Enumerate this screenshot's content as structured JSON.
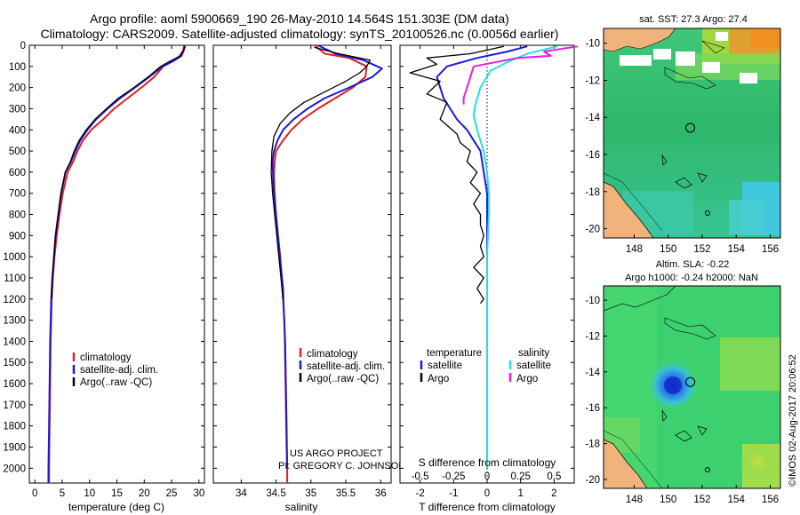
{
  "header": {
    "title_line1": "Argo profile: aoml 5900669_190 26-May-2010 14.564S 151.303E (DM data)",
    "title_line2": "Climatology: CARS2009. Satellite-adjusted climatology: synTS_20100526.nc (0.0056d earlier)"
  },
  "credits": {
    "project": "US ARGO PROJECT",
    "pi": "PI: GREGORY C. JOHNSON",
    "imos": "©IMOS 02-Aug-2017 20:06:52"
  },
  "colors": {
    "climatology": "#e02020",
    "satellite": "#1a1ad8",
    "argo": "#000000",
    "sal_satellite": "#20e0e0",
    "sal_argo": "#e020e0",
    "land": "#f2b27c"
  },
  "chart_data": [
    {
      "id": "temperature",
      "type": "line",
      "xlabel": "temperature (deg C)",
      "ylabel": "",
      "xlim": [
        -1,
        31
      ],
      "ylim": [
        2070,
        0
      ],
      "xticks": [
        "0",
        "5",
        "10",
        "15",
        "20",
        "25",
        "30"
      ],
      "xtick_values": [
        0,
        5,
        10,
        15,
        20,
        25,
        30
      ],
      "yticks": [
        "0",
        "100",
        "200",
        "300",
        "400",
        "500",
        "600",
        "700",
        "800",
        "900",
        "1000",
        "1100",
        "1200",
        "1300",
        "1400",
        "1500",
        "1600",
        "1700",
        "1800",
        "1900",
        "2000"
      ],
      "ytick_values": [
        0,
        100,
        200,
        300,
        400,
        500,
        600,
        700,
        800,
        900,
        1000,
        1100,
        1200,
        1300,
        1400,
        1500,
        1600,
        1700,
        1800,
        1900,
        2000
      ],
      "legend": [
        "climatology",
        "satellite-adj. clim.",
        "Argo(..raw -QC)"
      ],
      "series": [
        {
          "name": "climatology",
          "color": "#e02020",
          "width": 2,
          "x": [
            27.3,
            27.1,
            26.5,
            25.2,
            23.5,
            21.8,
            19.5,
            17,
            14.5,
            12.5,
            10.3,
            8.8,
            7.8,
            7,
            6,
            5.1,
            4.5,
            4,
            3.6,
            3.3,
            3.1,
            2.9,
            2.8,
            2.7,
            2.6,
            2.6
          ],
          "y": [
            0,
            25,
            50,
            75,
            100,
            150,
            200,
            250,
            300,
            350,
            400,
            450,
            500,
            550,
            600,
            700,
            800,
            900,
            1000,
            1100,
            1200,
            1400,
            1600,
            1800,
            2000,
            2070
          ]
        },
        {
          "name": "satellite-adj. clim.",
          "color": "#1a1ad8",
          "width": 2,
          "x": [
            27.4,
            27.2,
            26.8,
            25.3,
            23.3,
            20.9,
            18.3,
            15.6,
            13.3,
            11.2,
            9.6,
            8.3,
            7.4,
            6.6,
            5.6,
            4.8,
            4.3,
            3.8,
            3.5,
            3.2,
            3,
            2.8,
            2.7,
            2.6,
            2.5,
            2.5
          ],
          "y": [
            0,
            25,
            50,
            75,
            100,
            150,
            200,
            250,
            300,
            350,
            400,
            450,
            500,
            550,
            600,
            700,
            800,
            900,
            1000,
            1100,
            1200,
            1400,
            1600,
            1800,
            2000,
            2070
          ]
        },
        {
          "name": "Argo(..raw -QC)",
          "color": "#000000",
          "width": 1.3,
          "x": [
            27.5,
            27.2,
            26.6,
            24.7,
            23,
            20.7,
            18.1,
            15.3,
            13.1,
            11,
            9.4,
            8.1,
            7.2,
            6.5,
            5.6,
            4.8,
            4.3,
            3.8,
            3.5,
            3.2,
            3.1
          ],
          "y": [
            5,
            25,
            50,
            75,
            100,
            150,
            200,
            250,
            300,
            350,
            400,
            450,
            500,
            550,
            600,
            700,
            800,
            900,
            1000,
            1100,
            1200
          ]
        }
      ]
    },
    {
      "id": "salinity",
      "type": "line",
      "xlabel": "salinity",
      "xlim": [
        33.6,
        36.15
      ],
      "ylim": [
        2070,
        0
      ],
      "xticks": [
        "34",
        "34.5",
        "35",
        "35.5",
        "36"
      ],
      "xtick_values": [
        34,
        34.5,
        35,
        35.5,
        36
      ],
      "legend": [
        "climatology",
        "satellite-adj. clim.",
        "Argo(..raw -QC)"
      ],
      "series": [
        {
          "name": "climatology",
          "color": "#e02020",
          "width": 2,
          "x": [
            35.05,
            35.2,
            35.55,
            35.8,
            35.78,
            35.6,
            35.35,
            35.1,
            34.88,
            34.72,
            34.6,
            34.5,
            34.48,
            34.47,
            34.48,
            34.5,
            34.53,
            34.56,
            34.58,
            34.6,
            34.62,
            34.63,
            34.64,
            34.65,
            34.66,
            34.66
          ],
          "y": [
            0,
            40,
            60,
            100,
            150,
            200,
            250,
            300,
            350,
            400,
            450,
            500,
            550,
            600,
            700,
            800,
            900,
            1000,
            1100,
            1200,
            1300,
            1500,
            1700,
            1900,
            2000,
            2070
          ]
        },
        {
          "name": "satellite-adj. clim.",
          "color": "#1a1ad8",
          "width": 2,
          "x": [
            35.1,
            35.35,
            35.75,
            36.02,
            35.88,
            35.55,
            35.2,
            34.95,
            34.75,
            34.6,
            34.52,
            34.47,
            34.45,
            34.46,
            34.48,
            34.51,
            34.54,
            34.57,
            34.6,
            34.61,
            34.63,
            34.64,
            34.65,
            34.66
          ],
          "y": [
            0,
            40,
            70,
            110,
            150,
            200,
            250,
            300,
            350,
            400,
            450,
            500,
            550,
            650,
            750,
            850,
            950,
            1050,
            1150,
            1250,
            1400,
            1600,
            1800,
            2000
          ]
        },
        {
          "name": "Argo(..raw -QC)",
          "color": "#000000",
          "width": 1.3,
          "x": [
            35.05,
            35.4,
            35.85,
            35.8,
            35.7,
            35.5,
            35.2,
            34.9,
            34.7,
            34.56,
            34.47,
            34.44,
            34.43,
            34.45,
            34.48,
            34.51,
            34.54,
            34.57,
            34.6
          ],
          "y": [
            10,
            40,
            70,
            100,
            130,
            170,
            220,
            270,
            320,
            370,
            430,
            500,
            600,
            700,
            800,
            900,
            1000,
            1100,
            1200
          ]
        }
      ]
    },
    {
      "id": "difference",
      "type": "line",
      "xlabel": "T difference from climatology",
      "xlabel_top": "S difference from climatology",
      "xlim": [
        -2.6,
        2.6
      ],
      "ylim": [
        2070,
        0
      ],
      "xticks_T": [
        "-2",
        "-1",
        "0",
        "1",
        "2"
      ],
      "xtick_values_T": [
        -2,
        -1,
        0,
        1,
        2
      ],
      "xticks_S": [
        "-0.5",
        "-0.25",
        "0",
        "0.25",
        "0.5"
      ],
      "xtick_values_S": [
        -0.5,
        -0.25,
        0,
        0.25,
        0.5
      ],
      "legend_left_title": "temperature",
      "legend_right_title": "salinity",
      "legend_left": [
        "satellite",
        "Argo"
      ],
      "legend_right": [
        "satellite",
        "Argo"
      ],
      "series": [
        {
          "name": "T satellite",
          "color": "#1a1ad8",
          "width": 2,
          "x": [
            1.2,
            0.6,
            -0.3,
            -1.2,
            -1.5,
            -1.4,
            -1.3,
            -1.1,
            -0.9,
            -0.6,
            -0.4,
            -0.2,
            -0.1,
            0,
            0,
            0,
            0,
            0
          ],
          "y": [
            5,
            30,
            60,
            100,
            150,
            200,
            250,
            300,
            350,
            400,
            450,
            500,
            600,
            700,
            800,
            1000,
            1500,
            2000
          ]
        },
        {
          "name": "S satellite",
          "color": "#20e0e0",
          "width": 2,
          "x": [
            2.1,
            1.2,
            0.6,
            0.1,
            -0.2,
            -0.35,
            -0.4,
            -0.3,
            -0.1,
            0,
            0.05,
            0.05,
            0,
            0,
            0
          ],
          "y": [
            5,
            40,
            80,
            120,
            200,
            280,
            330,
            400,
            500,
            600,
            700,
            800,
            1000,
            1500,
            2000
          ]
        },
        {
          "name": "S Argo",
          "color": "#e020e0",
          "width": 2,
          "x": [
            2.7,
            1.7,
            1.9,
            0.9,
            -0.4,
            -0.5,
            -0.6,
            -0.7,
            -0.7
          ],
          "y": [
            5,
            30,
            50,
            60,
            100,
            150,
            200,
            250,
            280
          ]
        },
        {
          "name": "T Argo",
          "color": "#000000",
          "width": 1.3,
          "x": [
            0.5,
            -0.5,
            -1.8,
            -1.5,
            -2.3,
            -1.4,
            -1.8,
            -1.2,
            -1.4,
            -0.9,
            -0.8,
            -0.5,
            -0.6,
            -0.3,
            -0.5,
            -0.2,
            -0.4,
            -0.2,
            -0.2,
            -0.1,
            -0.2,
            -0.1,
            -0.4,
            -0.1,
            -0.3,
            -0.1,
            -0.2
          ],
          "y": [
            5,
            40,
            60,
            90,
            130,
            170,
            230,
            270,
            350,
            420,
            460,
            500,
            550,
            600,
            650,
            700,
            750,
            800,
            850,
            900,
            950,
            1000,
            1050,
            1100,
            1150,
            1200,
            1220
          ]
        }
      ]
    },
    {
      "id": "sst_map",
      "type": "heatmap",
      "title": "sat. SST: 27.3 Argo: 27.4",
      "xlim": [
        146.2,
        156.6
      ],
      "ylim": [
        -20.5,
        -9.2
      ],
      "xticks": [
        "148",
        "150",
        "152",
        "154",
        "156"
      ],
      "xtick_values": [
        148,
        150,
        152,
        154,
        156
      ],
      "yticks": [
        "-10",
        "-12",
        "-14",
        "-16",
        "-18",
        "-20"
      ],
      "ytick_values": [
        -10,
        -12,
        -14,
        -16,
        -18,
        -20
      ],
      "argo_position": [
        151.303,
        -14.564
      ]
    },
    {
      "id": "sla_map",
      "type": "heatmap",
      "title_line1": "Altim. SLA: -0.22",
      "title_line2": "Argo h1000: -0.24 h2000: NaN",
      "xlim": [
        146.2,
        156.6
      ],
      "ylim": [
        -20.5,
        -9.2
      ],
      "xticks": [
        "148",
        "150",
        "152",
        "154",
        "156"
      ],
      "xtick_values": [
        148,
        150,
        152,
        154,
        156
      ],
      "yticks": [
        "-10",
        "-12",
        "-14",
        "-16",
        "-18",
        "-20"
      ],
      "ytick_values": [
        -10,
        -12,
        -14,
        -16,
        -18,
        -20
      ],
      "argo_position": [
        151.303,
        -14.564
      ]
    }
  ]
}
